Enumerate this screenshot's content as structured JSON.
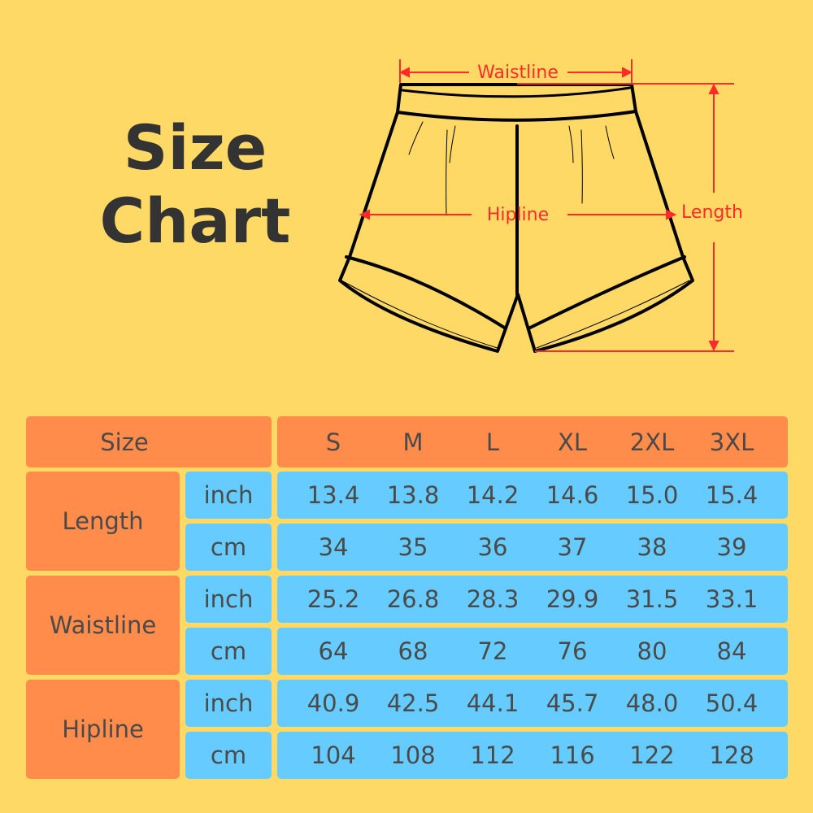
{
  "title": {
    "line1": "Size",
    "line2": "Chart"
  },
  "diagram": {
    "waistline": "Waistline",
    "hipline": "Hipline",
    "length": "Length",
    "arrow_color": "#FF2A2A"
  },
  "table": {
    "size_label": "Size",
    "sizes": [
      "S",
      "M",
      "L",
      "XL",
      "2XL",
      "3XL"
    ],
    "rows": [
      {
        "measure": "Length",
        "inch_label": "inch",
        "inch": [
          "13.4",
          "13.8",
          "14.2",
          "14.6",
          "15.0",
          "15.4"
        ],
        "cm_label": "cm",
        "cm": [
          "34",
          "35",
          "36",
          "37",
          "38",
          "39"
        ]
      },
      {
        "measure": "Waistline",
        "inch_label": "inch",
        "inch": [
          "25.2",
          "26.8",
          "28.3",
          "29.9",
          "31.5",
          "33.1"
        ],
        "cm_label": "cm",
        "cm": [
          "64",
          "68",
          "72",
          "76",
          "80",
          "84"
        ]
      },
      {
        "measure": "Hipline",
        "inch_label": "inch",
        "inch": [
          "40.9",
          "42.5",
          "44.1",
          "45.7",
          "48.0",
          "50.4"
        ],
        "cm_label": "cm",
        "cm": [
          "104",
          "108",
          "112",
          "116",
          "122",
          "128"
        ]
      }
    ]
  },
  "colors": {
    "background": "#FFD966",
    "header": "#FF8C4B",
    "cells": "#66CCFF",
    "text": "#4a4a4a"
  }
}
